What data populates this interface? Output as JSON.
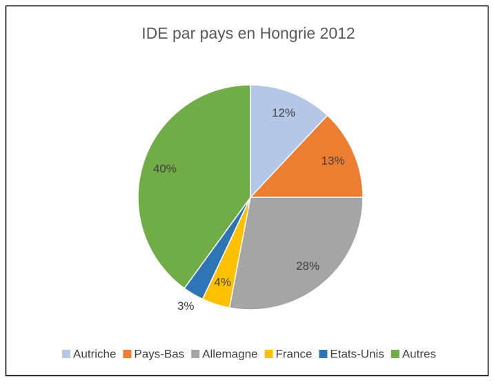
{
  "chart_data": {
    "type": "pie",
    "title": "IDE par pays en Hongrie 2012",
    "categories": [
      "Autriche",
      "Pays-Bas",
      "Allemagne",
      "France",
      "Etats-Unis",
      "Autres"
    ],
    "values": [
      12,
      13,
      28,
      4,
      3,
      40
    ],
    "value_labels": [
      "12%",
      "13%",
      "28%",
      "4%",
      "3%",
      "40%"
    ],
    "colors": [
      "#b4c7e7",
      "#ed7d31",
      "#a5a5a5",
      "#ffc000",
      "#2e75b6",
      "#70ad47"
    ],
    "legend": "bottom"
  }
}
